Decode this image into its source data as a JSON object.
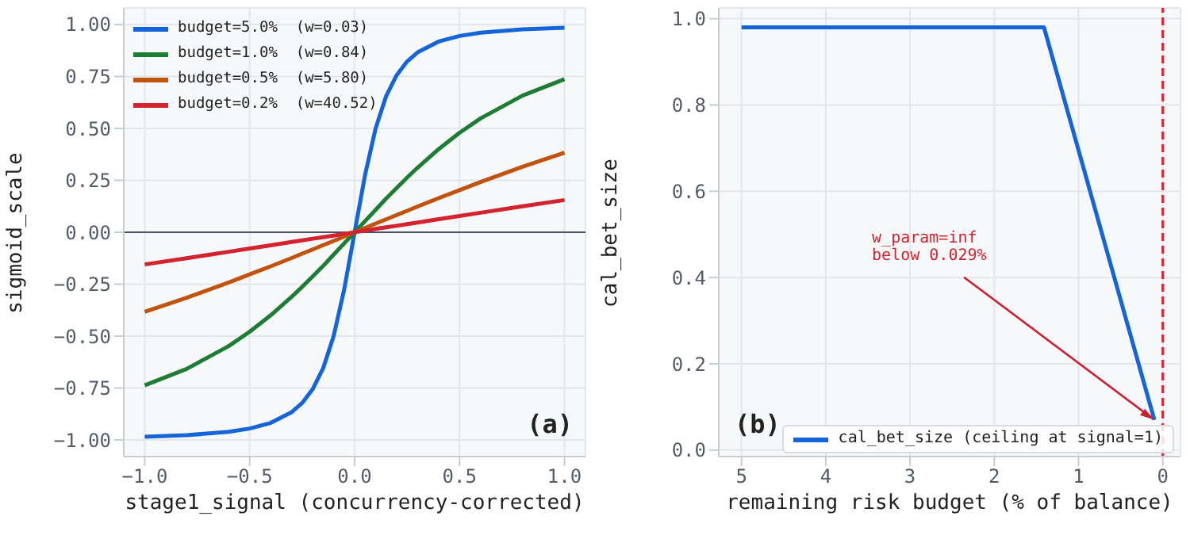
{
  "chart_data": [
    {
      "type": "line",
      "xlabel": "stage1_signal (concurrency-corrected)",
      "ylabel": "sigmoid_scale",
      "x": [
        -1,
        -0.8,
        -0.6,
        -0.5,
        -0.4,
        -0.3,
        -0.25,
        -0.2,
        -0.15,
        -0.1,
        -0.05,
        0,
        0.05,
        0.1,
        0.15,
        0.2,
        0.25,
        0.3,
        0.4,
        0.5,
        0.6,
        0.8,
        1
      ],
      "series": [
        {
          "name": "budget=5.0%  (w=0.03)",
          "color": "#1565d8",
          "values": [
            -0.985,
            -0.977,
            -0.961,
            -0.945,
            -0.918,
            -0.866,
            -0.822,
            -0.756,
            -0.655,
            -0.5,
            -0.277,
            0,
            0.277,
            0.5,
            0.655,
            0.756,
            0.822,
            0.866,
            0.918,
            0.945,
            0.961,
            0.977,
            0.985
          ]
        },
        {
          "name": "budget=1.0%  (w=0.84)",
          "color": "#1e7d34",
          "values": [
            -0.737,
            -0.658,
            -0.548,
            -0.479,
            -0.4,
            -0.311,
            -0.263,
            -0.213,
            -0.162,
            -0.108,
            -0.054,
            0,
            0.054,
            0.108,
            0.162,
            0.213,
            0.263,
            0.311,
            0.4,
            0.479,
            0.548,
            0.658,
            0.737
          ]
        },
        {
          "name": "budget=0.5%  (w=5.80)",
          "color": "#c2520c",
          "values": [
            -0.383,
            -0.315,
            -0.242,
            -0.203,
            -0.164,
            -0.124,
            -0.103,
            -0.083,
            -0.062,
            -0.042,
            -0.021,
            0,
            0.021,
            0.042,
            0.062,
            0.083,
            0.103,
            0.124,
            0.164,
            0.203,
            0.242,
            0.315,
            0.383
          ]
        },
        {
          "name": "budget=0.2%  (w=40.52)",
          "color": "#d2232f",
          "values": [
            -0.155,
            -0.125,
            -0.094,
            -0.078,
            -0.063,
            -0.047,
            -0.039,
            -0.031,
            -0.024,
            -0.016,
            -0.008,
            0,
            0.008,
            0.016,
            0.024,
            0.031,
            0.039,
            0.047,
            0.063,
            0.078,
            0.094,
            0.125,
            0.155
          ]
        }
      ],
      "xlim": [
        -1.1,
        1.1
      ],
      "xticks": [
        {
          "value": -1,
          "label": "−1.0"
        },
        {
          "value": -0.5,
          "label": "−0.5"
        },
        {
          "value": 0,
          "label": "0.0"
        },
        {
          "value": 0.5,
          "label": "0.5"
        },
        {
          "value": 1,
          "label": "1.0"
        }
      ],
      "ylim": [
        -1.08,
        1.08
      ],
      "yticks": [
        {
          "value": -1,
          "label": "−1.00"
        },
        {
          "value": -0.75,
          "label": "−0.75"
        },
        {
          "value": -0.5,
          "label": "−0.50"
        },
        {
          "value": -0.25,
          "label": "−0.25"
        },
        {
          "value": 0,
          "label": "0.00"
        },
        {
          "value": 0.25,
          "label": "0.25"
        },
        {
          "value": 0.5,
          "label": "0.50"
        },
        {
          "value": 0.75,
          "label": "0.75"
        },
        {
          "value": 1,
          "label": "1.00"
        }
      ],
      "ref_lines": [
        {
          "axis": "y",
          "value": 0,
          "color": "#4a5160"
        }
      ],
      "annotations": [
        "(a)"
      ],
      "grid": true,
      "legend": "top left"
    },
    {
      "type": "line",
      "xlabel": "remaining risk budget (% of balance)",
      "ylabel": "cal_bet_size",
      "series": [
        {
          "name": "cal_bet_size (ceiling at signal=1)",
          "color": "#1565d8",
          "x": [
            5,
            1.41,
            0.1
          ],
          "values": [
            0.98,
            0.98,
            0.07
          ]
        }
      ],
      "xlim": [
        5.27,
        -0.21
      ],
      "xticks": [
        5,
        4,
        3,
        2,
        1,
        0
      ],
      "ylim": [
        -0.015,
        1.025
      ],
      "yticks": [
        {
          "value": 0,
          "label": "0.0"
        },
        {
          "value": 0.2,
          "label": "0.2"
        },
        {
          "value": 0.4,
          "label": "0.4"
        },
        {
          "value": 0.6,
          "label": "0.6"
        },
        {
          "value": 0.8,
          "label": "0.8"
        },
        {
          "value": 1,
          "label": "1.0"
        }
      ],
      "ref_lines": [
        {
          "axis": "x",
          "value": 0,
          "color": "#d62838",
          "line_style": "dashed"
        }
      ],
      "annotations": [
        "(b)",
        {
          "text": "w_param=inf\nbelow 0.029%",
          "x": 0.1,
          "y": 0.07
        }
      ],
      "grid": true,
      "legend": "bottom right"
    }
  ]
}
